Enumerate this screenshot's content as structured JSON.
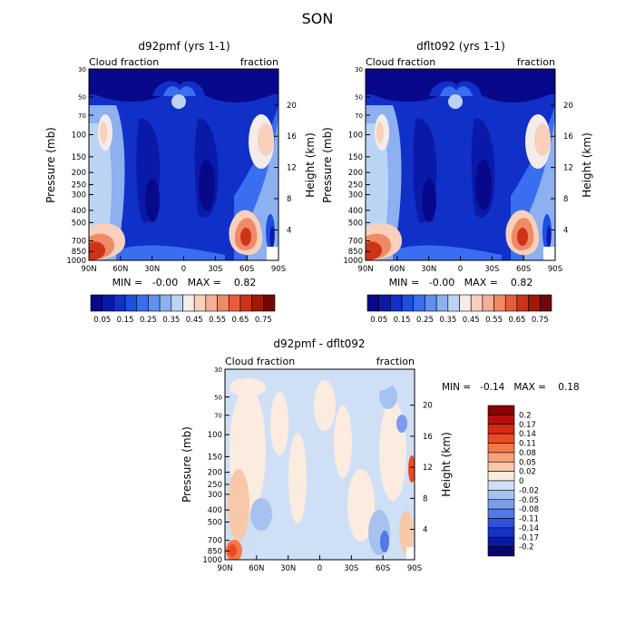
{
  "figure": {
    "title": "SON"
  },
  "chart_data": [
    {
      "type": "heatmap",
      "title": "d92pmf (yrs 1-1)",
      "left_label": "Cloud fraction",
      "right_label": "fraction",
      "xlabel": "",
      "ylabel": "Pressure (mb)",
      "y2label": "Height (km)",
      "x_ticks": [
        "90N",
        "60N",
        "30N",
        "0",
        "30S",
        "60S",
        "90S"
      ],
      "x_values": [
        90,
        60,
        30,
        0,
        -30,
        -60,
        -90
      ],
      "y_ticks": [
        "30",
        "50",
        "70",
        "100",
        "150",
        "200",
        "250",
        "300",
        "400",
        "500",
        "700",
        "850",
        "1000"
      ],
      "y_values": [
        30,
        50,
        70,
        100,
        150,
        200,
        250,
        300,
        400,
        500,
        700,
        850,
        1000
      ],
      "height_ticks": [
        "20",
        "16",
        "12",
        "8",
        "4"
      ],
      "height_values": [
        20,
        16,
        12,
        8,
        4
      ],
      "stats": "MIN =   -0.00   MAX =    0.82",
      "min": -0.0,
      "max": 0.82,
      "colorbar_levels": [
        "0.05",
        "0.15",
        "0.25",
        "0.35",
        "0.45",
        "0.55",
        "0.65",
        "0.75"
      ]
    },
    {
      "type": "heatmap",
      "title": "dflt092 (yrs 1-1)",
      "left_label": "Cloud fraction",
      "right_label": "fraction",
      "xlabel": "",
      "ylabel": "Pressure (mb)",
      "y2label": "Height (km)",
      "x_ticks": [
        "90N",
        "60N",
        "30N",
        "0",
        "30S",
        "60S",
        "90S"
      ],
      "x_values": [
        90,
        60,
        30,
        0,
        -30,
        -60,
        -90
      ],
      "y_ticks": [
        "30",
        "50",
        "70",
        "100",
        "150",
        "200",
        "250",
        "300",
        "400",
        "500",
        "700",
        "850",
        "1000"
      ],
      "y_values": [
        30,
        50,
        70,
        100,
        150,
        200,
        250,
        300,
        400,
        500,
        700,
        850,
        1000
      ],
      "height_ticks": [
        "20",
        "16",
        "12",
        "8",
        "4"
      ],
      "height_values": [
        20,
        16,
        12,
        8,
        4
      ],
      "stats": "MIN =   -0.00   MAX =    0.82",
      "min": -0.0,
      "max": 0.82,
      "colorbar_levels": [
        "0.05",
        "0.15",
        "0.25",
        "0.35",
        "0.45",
        "0.55",
        "0.65",
        "0.75"
      ]
    },
    {
      "type": "heatmap",
      "title": "d92pmf - dflt092",
      "left_label": "Cloud fraction",
      "right_label": "fraction",
      "xlabel": "",
      "ylabel": "Pressure (mb)",
      "y2label": "Height (km)",
      "x_ticks": [
        "90N",
        "60N",
        "30N",
        "0",
        "30S",
        "60S",
        "90S"
      ],
      "x_values": [
        90,
        60,
        30,
        0,
        -30,
        -60,
        -90
      ],
      "y_ticks": [
        "30",
        "50",
        "70",
        "100",
        "150",
        "200",
        "250",
        "300",
        "400",
        "500",
        "700",
        "850",
        "1000"
      ],
      "y_values": [
        30,
        50,
        70,
        100,
        150,
        200,
        250,
        300,
        400,
        500,
        700,
        850,
        1000
      ],
      "height_ticks": [
        "20",
        "16",
        "12",
        "8",
        "4"
      ],
      "height_values": [
        20,
        16,
        12,
        8,
        4
      ],
      "stats": "MIN =   -0.14   MAX =    0.18",
      "min": -0.14,
      "max": 0.18,
      "colorbar_levels": [
        "0.2",
        "0.17",
        "0.14",
        "0.11",
        "0.08",
        "0.05",
        "0.02",
        "0",
        "-0.02",
        "-0.05",
        "-0.08",
        "-0.11",
        "-0.14",
        "-0.17",
        "-0.2"
      ]
    }
  ],
  "colors": {
    "sequential": [
      "#08088a",
      "#0a1aa8",
      "#1030c8",
      "#1c50e0",
      "#3a6ef0",
      "#6090f0",
      "#8cb0f0",
      "#bcd4f4",
      "#f4ecea",
      "#f8d0bc",
      "#f4b094",
      "#ef8a66",
      "#e85c38",
      "#cc3418",
      "#a01808",
      "#700808"
    ],
    "diverging": [
      "#8b0000",
      "#b41010",
      "#d42a14",
      "#ec4a24",
      "#f47848",
      "#f8a078",
      "#f8c8a8",
      "#fcece0",
      "#cfe0f6",
      "#a8c2f0",
      "#7c9cec",
      "#5478e6",
      "#2e50dc",
      "#1434c8",
      "#0a1aa0",
      "#06066e"
    ]
  }
}
